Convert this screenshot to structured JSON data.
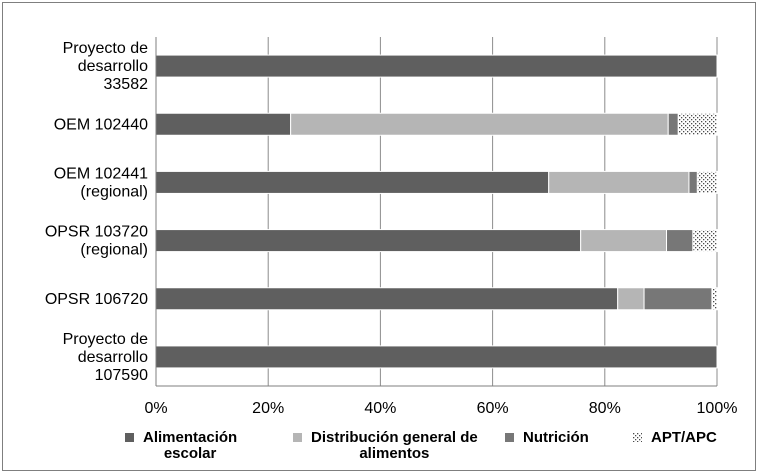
{
  "chart_data": {
    "type": "bar",
    "orientation": "horizontal",
    "stacked": "percent",
    "categories": [
      "Proyecto de desarrollo 107590",
      "OPSR 106720",
      "OPSR 103720 (regional)",
      "OEM 102441 (regional)",
      "OEM 102440",
      "Proyecto de desarrollo 33582"
    ],
    "category_lines": [
      [
        "Proyecto de",
        "desarrollo",
        "107590"
      ],
      [
        "OPSR 106720"
      ],
      [
        "OPSR 103720",
        "(regional)"
      ],
      [
        "OEM 102441",
        "(regional)"
      ],
      [
        "OEM 102440"
      ],
      [
        "Proyecto de",
        "desarrollo",
        "33582"
      ]
    ],
    "series": [
      {
        "name": "Alimentación escolar",
        "legend_lines": [
          "Alimentación",
          "escolar"
        ],
        "color": "#5f5f5f",
        "pattern": "solid",
        "values": [
          100,
          82.3,
          75.7,
          70.0,
          24.0,
          100
        ]
      },
      {
        "name": "Distribución general de alimentos",
        "legend_lines": [
          "Distribución general de",
          "alimentos"
        ],
        "color": "#b5b5b5",
        "pattern": "solid",
        "values": [
          0,
          4.7,
          15.3,
          25.0,
          67.3,
          0
        ]
      },
      {
        "name": "Nutrición",
        "legend_lines": [
          "Nutrición"
        ],
        "color": "#777777",
        "pattern": "solid",
        "values": [
          0,
          12.1,
          4.7,
          1.5,
          1.8,
          0
        ]
      },
      {
        "name": "APT/APC",
        "legend_lines": [
          "APT/APC"
        ],
        "color": "#ffffff",
        "pattern": "dots",
        "values": [
          0,
          0.9,
          4.3,
          3.5,
          6.9,
          0
        ]
      }
    ],
    "xlim": [
      0,
      100
    ],
    "x_ticks": [
      "0%",
      "20%",
      "40%",
      "60%",
      "80%",
      "100%"
    ],
    "grid": "vertical",
    "legend": "bottom",
    "title": "",
    "xlabel": "",
    "ylabel": ""
  }
}
